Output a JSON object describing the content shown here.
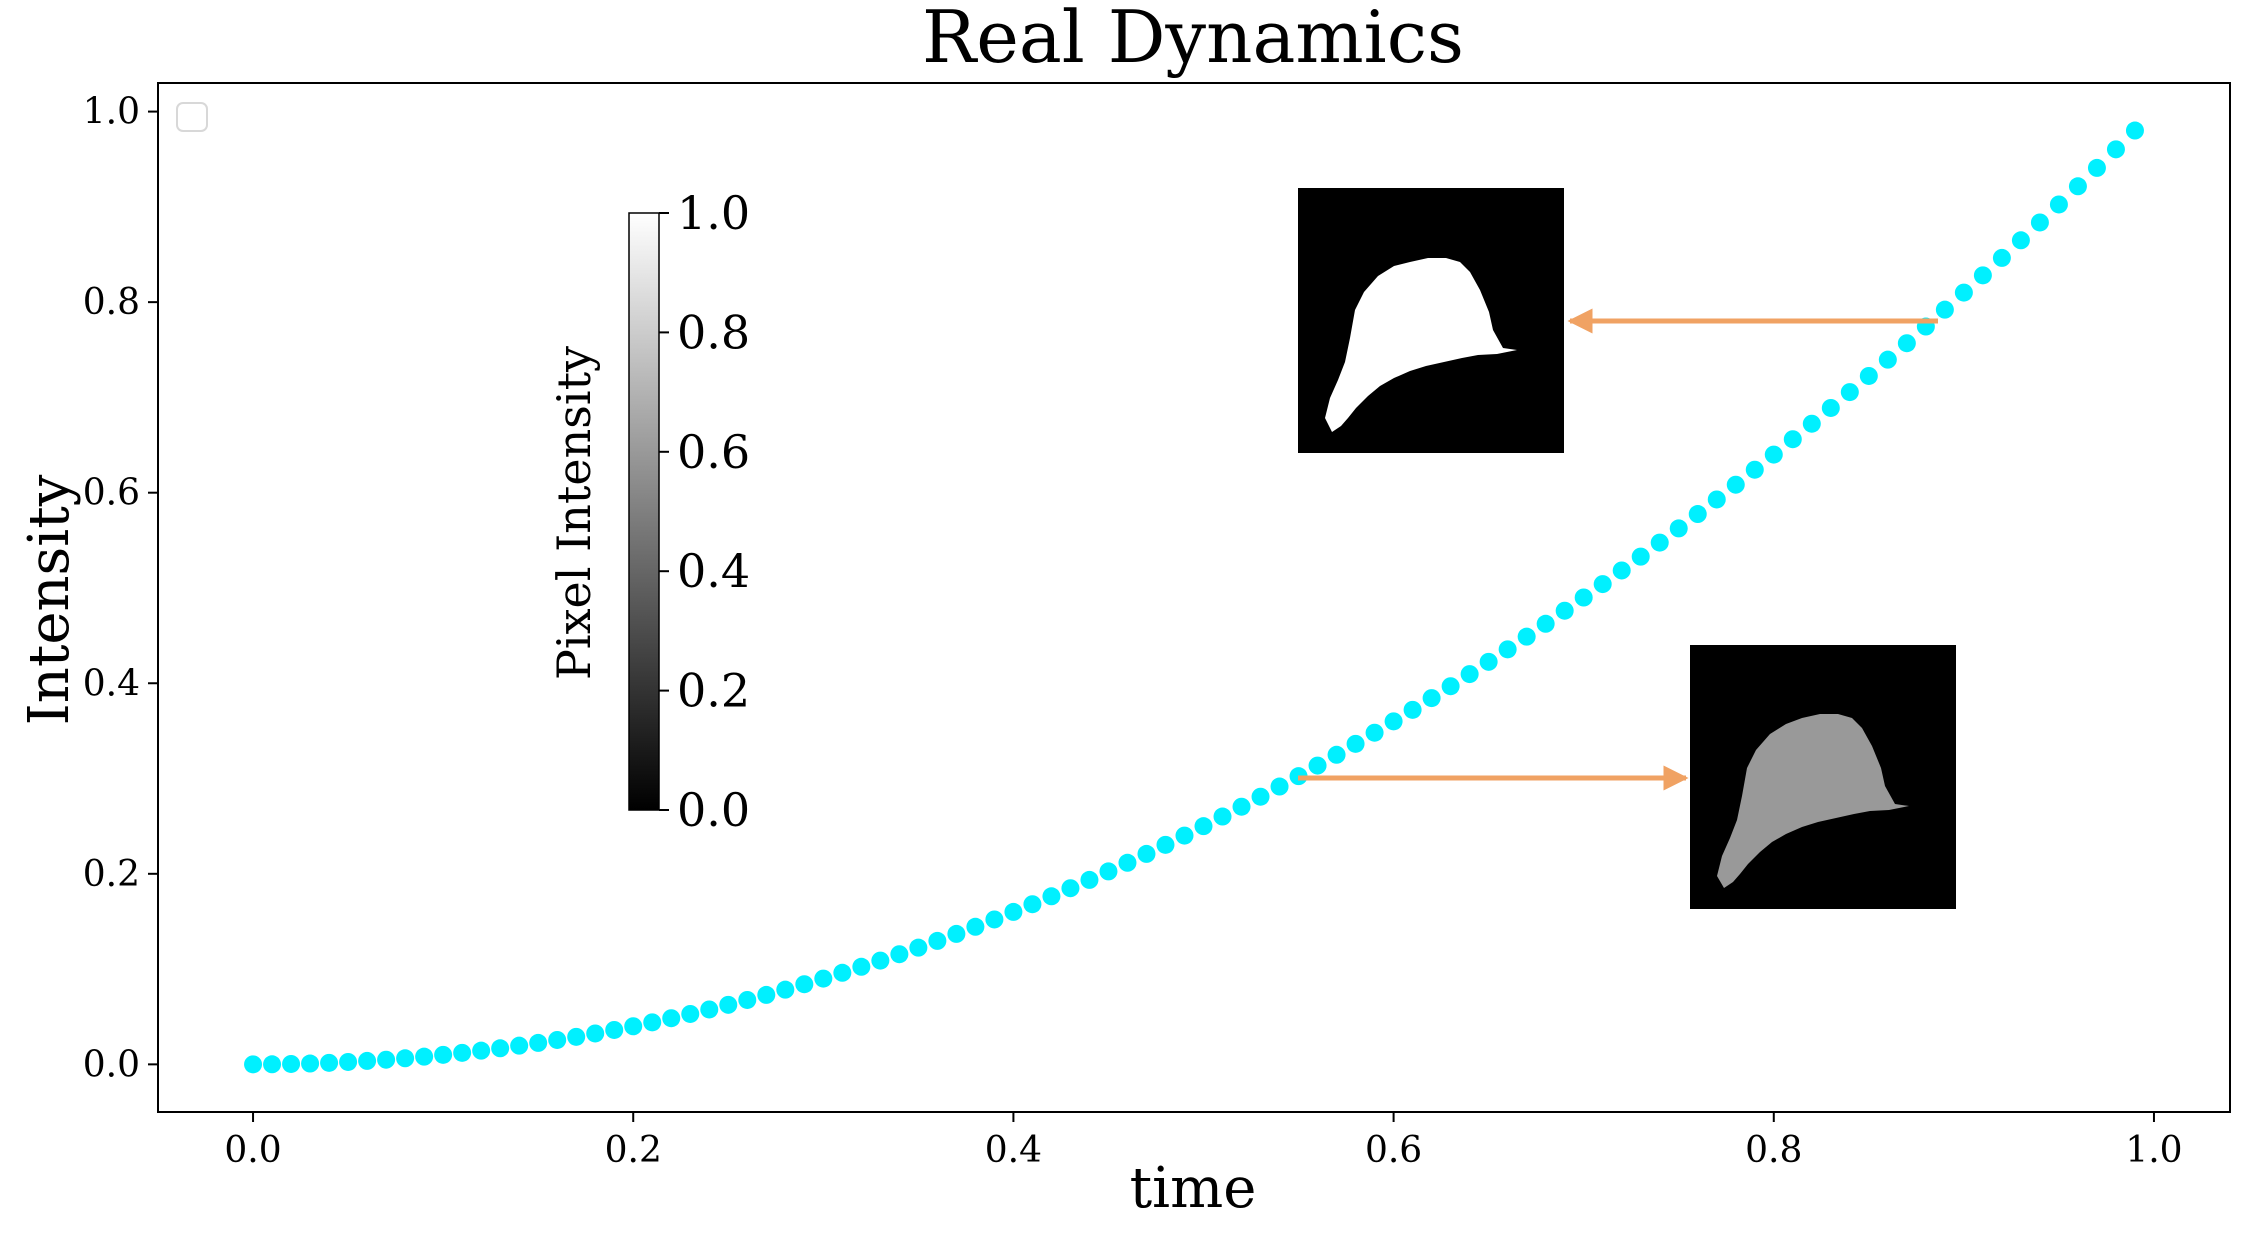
{
  "chart_data": {
    "type": "scatter",
    "title": "Real Dynamics",
    "xlabel": "time",
    "ylabel": "Intensity",
    "xlim": [
      -0.05,
      1.04
    ],
    "ylim": [
      -0.05,
      1.03
    ],
    "x_ticks": [
      0.0,
      0.2,
      0.4,
      0.6,
      0.8,
      1.0
    ],
    "x_tick_labels": [
      "0.0",
      "0.2",
      "0.4",
      "0.6",
      "0.8",
      "1.0"
    ],
    "y_ticks": [
      0.0,
      0.2,
      0.4,
      0.6,
      0.8,
      1.0
    ],
    "y_tick_labels": [
      "0.0",
      "0.2",
      "0.4",
      "0.6",
      "0.8",
      "1.0"
    ],
    "grid": false,
    "legend": "top-left (empty)",
    "series": [
      {
        "color": "#00f0ff",
        "marker": "circle",
        "function": "y = x^2",
        "x_start": 0.0,
        "x_end": 0.99,
        "x_step": 0.01
      }
    ],
    "colorbar": {
      "label": "Pixel Intensity",
      "range": [
        0.0,
        1.0
      ],
      "colormap": "gray",
      "ticks": [
        0.0,
        0.2,
        0.4,
        0.6,
        0.8,
        1.0
      ],
      "tick_labels": [
        "0.0",
        "0.2",
        "0.4",
        "0.6",
        "0.8",
        "1.0"
      ]
    },
    "annotations": [
      {
        "kind": "arrow-to-image",
        "from": [
          0.89,
          0.79
        ],
        "image": "bright-shape-thumbnail",
        "shape_intensity": 1.0
      },
      {
        "kind": "arrow-to-image",
        "from": [
          0.55,
          0.3
        ],
        "image": "dim-shape-thumbnail",
        "shape_intensity": 0.6
      }
    ],
    "arrow_color": "#f0a263"
  }
}
